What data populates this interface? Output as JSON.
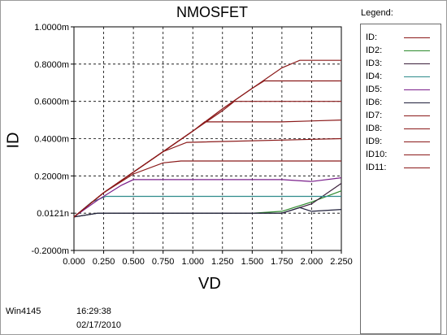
{
  "window": {
    "title": "NMOSFET",
    "legend_title": "Legend:",
    "footer_left": "Win4145",
    "footer_time": "16:29:38",
    "footer_date": "02/17/2010"
  },
  "chart_data": {
    "type": "line",
    "title": "NMOSFET",
    "xlabel": "VD",
    "ylabel": "ID",
    "xlim": [
      0,
      2.25
    ],
    "ylim": [
      -0.2,
      1.0
    ],
    "grid": true,
    "legend_placement": "right",
    "x_tick_labels": [
      "0.000",
      "0.250",
      "0.500",
      "0.750",
      "1.000",
      "1.250",
      "1.500",
      "1.750",
      "2.000",
      "2.250"
    ],
    "x_tick_values": [
      0,
      0.25,
      0.5,
      0.75,
      1.0,
      1.25,
      1.5,
      1.75,
      2.0,
      2.25
    ],
    "y_tick_labels": [
      "1.0000m",
      "0.8000m",
      "0.6000m",
      "0.4000m",
      "0.2000m",
      "0.0121n",
      "-0.2000m"
    ],
    "y_tick_values": [
      1.0,
      0.8,
      0.6,
      0.4,
      0.2,
      0.0,
      -0.2
    ],
    "series": [
      {
        "name": "ID:",
        "color": "#8b1a1a",
        "points": [
          [
            0,
            -0.02
          ],
          [
            0.25,
            0.11
          ],
          [
            0.5,
            0.22
          ],
          [
            0.75,
            0.33
          ],
          [
            1.0,
            0.44
          ],
          [
            1.25,
            0.56
          ],
          [
            1.5,
            0.67
          ],
          [
            1.75,
            0.78
          ],
          [
            1.9,
            0.82
          ],
          [
            2.25,
            0.82
          ]
        ]
      },
      {
        "name": "ID2:",
        "color": "#2e8b2e",
        "points": [
          [
            0,
            -0.02
          ],
          [
            0.2,
            0.0
          ],
          [
            1.5,
            0.0
          ],
          [
            1.75,
            0.01
          ],
          [
            2.0,
            0.06
          ],
          [
            2.25,
            0.12
          ]
        ]
      },
      {
        "name": "ID3:",
        "color": "#3b1f3b",
        "points": [
          [
            0,
            -0.02
          ],
          [
            0.2,
            0.0
          ],
          [
            1.5,
            0.0
          ],
          [
            1.75,
            0.0
          ],
          [
            2.0,
            0.05
          ],
          [
            2.25,
            0.16
          ]
        ]
      },
      {
        "name": "ID4:",
        "color": "#2e8b8b",
        "points": [
          [
            0,
            -0.02
          ],
          [
            0.15,
            0.06
          ],
          [
            0.27,
            0.09
          ],
          [
            2.25,
            0.09
          ]
        ]
      },
      {
        "name": "ID5:",
        "color": "#7a1f8b",
        "points": [
          [
            0,
            -0.02
          ],
          [
            0.2,
            0.07
          ],
          [
            0.4,
            0.15
          ],
          [
            0.5,
            0.18
          ],
          [
            1.5,
            0.18
          ],
          [
            1.75,
            0.18
          ],
          [
            2.0,
            0.17
          ],
          [
            2.25,
            0.19
          ]
        ]
      },
      {
        "name": "ID6:",
        "color": "#1f1f3b",
        "points": [
          [
            0,
            -0.02
          ],
          [
            0.2,
            0.0
          ],
          [
            1.5,
            0.0
          ],
          [
            1.75,
            0.0
          ],
          [
            1.9,
            0.03
          ],
          [
            2.0,
            0.01
          ],
          [
            2.25,
            0.02
          ]
        ]
      },
      {
        "name": "ID7:",
        "color": "#8b1a1a",
        "points": [
          [
            0,
            -0.02
          ],
          [
            0.25,
            0.11
          ],
          [
            0.5,
            0.21
          ],
          [
            0.75,
            0.27
          ],
          [
            0.9,
            0.28
          ],
          [
            2.25,
            0.28
          ]
        ]
      },
      {
        "name": "ID8:",
        "color": "#8b1a1a",
        "points": [
          [
            0,
            -0.02
          ],
          [
            0.25,
            0.11
          ],
          [
            0.5,
            0.22
          ],
          [
            0.75,
            0.33
          ],
          [
            0.95,
            0.38
          ],
          [
            2.25,
            0.4
          ]
        ]
      },
      {
        "name": "ID9:",
        "color": "#8b1a1a",
        "points": [
          [
            0,
            -0.02
          ],
          [
            0.25,
            0.11
          ],
          [
            0.5,
            0.22
          ],
          [
            0.75,
            0.33
          ],
          [
            1.0,
            0.44
          ],
          [
            1.1,
            0.49
          ],
          [
            1.75,
            0.49
          ],
          [
            2.25,
            0.5
          ]
        ]
      },
      {
        "name": "ID10:",
        "color": "#8b1a1a",
        "points": [
          [
            0,
            -0.02
          ],
          [
            0.25,
            0.11
          ],
          [
            0.5,
            0.22
          ],
          [
            0.75,
            0.33
          ],
          [
            1.0,
            0.44
          ],
          [
            1.25,
            0.55
          ],
          [
            1.35,
            0.6
          ],
          [
            2.25,
            0.6
          ]
        ]
      },
      {
        "name": "ID11:",
        "color": "#8b1a1a",
        "points": [
          [
            0,
            -0.02
          ],
          [
            0.25,
            0.11
          ],
          [
            0.5,
            0.22
          ],
          [
            0.75,
            0.33
          ],
          [
            1.0,
            0.44
          ],
          [
            1.25,
            0.56
          ],
          [
            1.5,
            0.67
          ],
          [
            1.6,
            0.71
          ],
          [
            2.25,
            0.71
          ]
        ]
      }
    ]
  }
}
